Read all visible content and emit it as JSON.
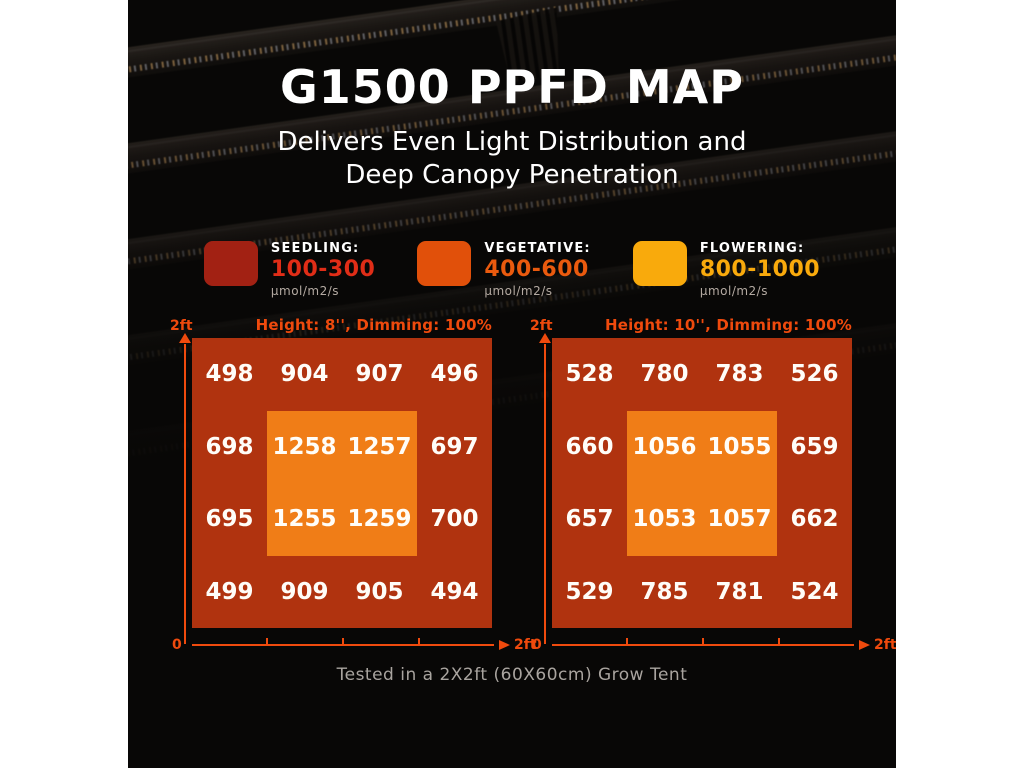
{
  "header": {
    "title": "G1500 PPFD MAP",
    "subtitle_line1": "Delivers Even Light Distribution and",
    "subtitle_line2": "Deep Canopy Penetration"
  },
  "legend": {
    "items": [
      {
        "label": "SEEDLING:",
        "range": "100-300",
        "unit": "μmol/m2/s",
        "swatch_color": "#a22113",
        "range_color": "#e02d17"
      },
      {
        "label": "VEGETATIVE:",
        "range": "400-600",
        "unit": "μmol/m2/s",
        "swatch_color": "#e1500a",
        "range_color": "#ea5a0e"
      },
      {
        "label": "FLOWERING:",
        "range": "800-1000",
        "unit": "μmol/m2/s",
        "swatch_color": "#f9aa0c",
        "range_color": "#f9aa0c"
      }
    ]
  },
  "chart_data": [
    {
      "type": "heatmap",
      "title": "Height: 8'', Dimming: 100%",
      "grid": "4x4",
      "values": [
        [
          498,
          904,
          907,
          496
        ],
        [
          698,
          1258,
          1257,
          697
        ],
        [
          695,
          1255,
          1259,
          700
        ],
        [
          499,
          909,
          905,
          494
        ]
      ],
      "inner_zone": "center 2x2 cells highlighted",
      "x_origin_label": "0",
      "x_max_label": "2ft",
      "y_max_label": "2ft",
      "unit": "μmol/m2/s",
      "colors": {
        "outer": "#b0330f",
        "inner": "#f07d17",
        "axis": "#ef4a0d"
      }
    },
    {
      "type": "heatmap",
      "title": "Height: 10'', Dimming: 100%",
      "grid": "4x4",
      "values": [
        [
          528,
          780,
          783,
          526
        ],
        [
          660,
          1056,
          1055,
          659
        ],
        [
          657,
          1053,
          1057,
          662
        ],
        [
          529,
          785,
          781,
          524
        ]
      ],
      "inner_zone": "center 2x2 cells highlighted",
      "x_origin_label": "0",
      "x_max_label": "2ft",
      "y_max_label": "2ft",
      "unit": "μmol/m2/s",
      "colors": {
        "outer": "#b0330f",
        "inner": "#f07d17",
        "axis": "#ef4a0d"
      }
    }
  ],
  "footer": {
    "caption": "Tested in a 2X2ft (60X60cm) Grow Tent"
  }
}
